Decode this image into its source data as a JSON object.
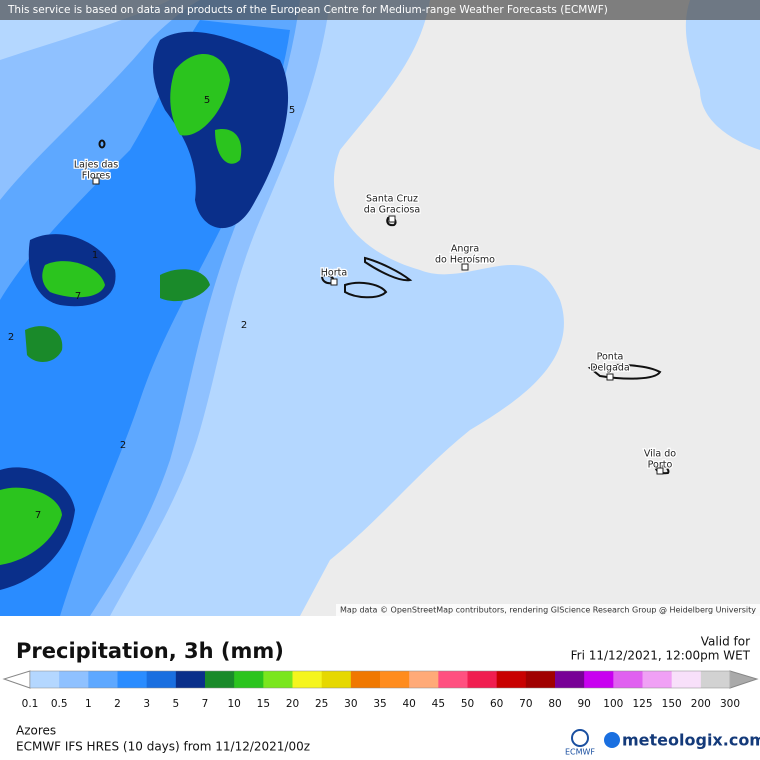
{
  "banner": "This service is based on data and products of the European Centre for Medium-range Weather Forecasts (ECMWF)",
  "map": {
    "attribution": "Map data © OpenStreetMap contributors, rendering GIScience Research Group @ Heidelberg University",
    "places": [
      {
        "lines": [
          "Lajes das",
          "Flores"
        ]
      },
      {
        "lines": [
          "Santa Cruz",
          "da Graciosa"
        ]
      },
      {
        "lines": [
          "Angra",
          "do Heroísmo"
        ]
      },
      {
        "lines": [
          "Horta"
        ]
      },
      {
        "lines": [
          "Ponta",
          "Delgada"
        ]
      },
      {
        "lines": [
          "Vila do",
          "Porto"
        ]
      }
    ],
    "contour_labels": [
      "5",
      "5",
      "1",
      "7",
      "2",
      "2",
      "2",
      "7"
    ]
  },
  "footer": {
    "title": "Precipitation, 3h (mm)",
    "valid_label": "Valid for",
    "valid_time": "Fri 11/12/2021, 12:00pm WET",
    "region": "Azores",
    "model": "ECMWF IFS HRES (10 days) from 11/12/2021/00z",
    "ecmwf_logo": "ECMWF",
    "brand": "meteologix.com"
  },
  "legend": {
    "labels": [
      0.1,
      0.5,
      1,
      2,
      3,
      5,
      7,
      10,
      15,
      20,
      25,
      30,
      35,
      40,
      45,
      50,
      60,
      70,
      80,
      90,
      100,
      125,
      150,
      200,
      300
    ],
    "colors": [
      "#b4d7ff",
      "#8fc1ff",
      "#5ea8ff",
      "#2a8cff",
      "#1a6fe0",
      "#0a2f8a",
      "#1a8a2a",
      "#2bc41e",
      "#7ae61e",
      "#f5f51e",
      "#e6d800",
      "#f07800",
      "#ff8c1e",
      "#ffaa78",
      "#ff5080",
      "#f01e50",
      "#c80000",
      "#a00000",
      "#780096",
      "#c800f0",
      "#e060f0",
      "#f0a0f5",
      "#f8e0fa",
      "#d2d2d2"
    ]
  }
}
